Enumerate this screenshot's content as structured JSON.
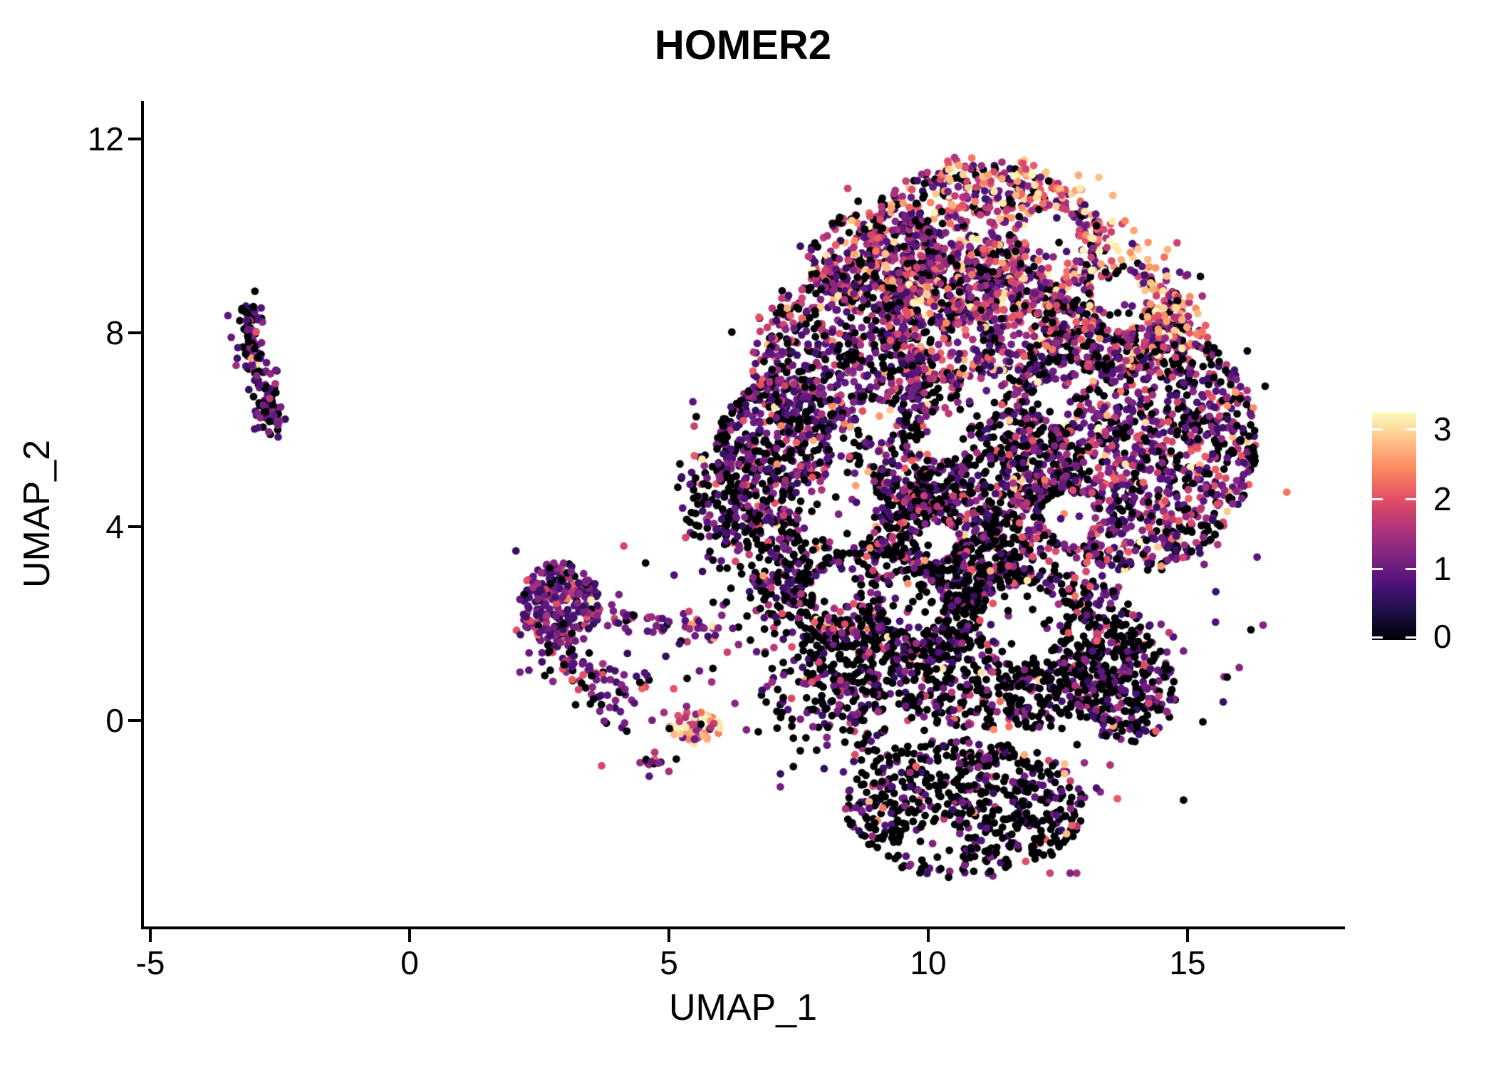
{
  "title": "HOMER2",
  "x_axis": {
    "label": "UMAP_1",
    "ticks": [
      "-5",
      "0",
      "5",
      "10",
      "15"
    ]
  },
  "y_axis": {
    "label": "UMAP_2",
    "ticks": [
      "12",
      "8",
      "4",
      "0"
    ]
  },
  "colorbar": {
    "ticks": [
      "3",
      "2",
      "1",
      "0"
    ],
    "gradient": [
      "#000004",
      "#1d1147",
      "#51127c",
      "#822681",
      "#b63679",
      "#e65164",
      "#fb8861",
      "#fec287",
      "#fcfdbf"
    ]
  },
  "chart_data": {
    "type": "scatter",
    "title": "HOMER2",
    "xlabel": "UMAP_1",
    "ylabel": "UMAP_2",
    "xlim": [
      -5.15,
      17.95
    ],
    "ylim": [
      -4.25,
      12.8
    ],
    "x_ticks": [
      -5,
      0,
      5,
      10,
      15
    ],
    "y_ticks": [
      0,
      4,
      8,
      12
    ],
    "grid": false,
    "background": "#ffffff",
    "legend": {
      "type": "colorbar",
      "position": "right",
      "ticks": [
        0,
        1,
        2,
        3
      ]
    },
    "color_scale": {
      "name": "magma",
      "domain": [
        0,
        3.3
      ],
      "colors": [
        "#000004",
        "#1d1147",
        "#51127c",
        "#822681",
        "#b63679",
        "#e65164",
        "#fb8861",
        "#fec287",
        "#fcfdbf"
      ]
    },
    "point_radius_px": 5.4,
    "seed": 987123,
    "expr_levels": {
      "zero": 0,
      "low": [
        0.55,
        1.3
      ],
      "mid": [
        1.3,
        2.2
      ],
      "high": [
        2.2,
        3.3
      ]
    },
    "blob_clip": {
      "cx": 11.1,
      "cy": 4.2,
      "rx": 5.95,
      "ry": 8.0,
      "ymin": -3.45,
      "ymax": 11.62
    },
    "clusters": [
      {
        "name": "blob-halo",
        "type": "gauss",
        "cx": 11.0,
        "cy": 4.6,
        "sx": 2.6,
        "sy": 3.1,
        "n": 460,
        "mix": {
          "zero": 0.45,
          "low": 0.35,
          "mid": 0.16,
          "high": 0.04
        },
        "clip": true
      },
      {
        "name": "blob-bottom-lobe",
        "type": "disk",
        "cx": 10.7,
        "cy": -1.8,
        "rx": 2.3,
        "ry": 1.45,
        "n": 560,
        "mix": {
          "zero": 0.7,
          "low": 0.24,
          "mid": 0.05,
          "high": 0.01
        },
        "clip": true
      },
      {
        "name": "blob-lower-mass",
        "type": "disk",
        "cx": 11.5,
        "cy": 1.5,
        "rx": 2.9,
        "ry": 1.7,
        "n": 800,
        "mix": {
          "zero": 0.66,
          "low": 0.25,
          "mid": 0.08,
          "high": 0.01
        },
        "clip": true
      },
      {
        "name": "blob-bottom-right",
        "type": "disk",
        "cx": 13.8,
        "cy": 0.7,
        "rx": 1.0,
        "ry": 1.2,
        "n": 230,
        "mix": {
          "zero": 0.58,
          "low": 0.33,
          "mid": 0.08,
          "high": 0.01
        },
        "clip": true
      },
      {
        "name": "blob-lowerleft-rim",
        "type": "band",
        "path": [
          [
            5.6,
            5.3
          ],
          [
            6.2,
            4.3
          ],
          [
            6.9,
            3.2
          ],
          [
            7.6,
            2.0
          ],
          [
            8.3,
            0.8
          ],
          [
            8.9,
            -0.3
          ]
        ],
        "w": 0.5,
        "n": 520,
        "mix": {
          "zero": 0.58,
          "low": 0.3,
          "mid": 0.11,
          "high": 0.01
        },
        "clip": true
      },
      {
        "name": "blob-mid-band",
        "type": "disk",
        "cx": 9.4,
        "cy": 3.1,
        "rx": 2.3,
        "ry": 1.9,
        "n": 650,
        "mix": {
          "zero": 0.62,
          "low": 0.27,
          "mid": 0.1,
          "high": 0.01
        },
        "clip": true
      },
      {
        "name": "blob-center",
        "type": "disk",
        "cx": 10.7,
        "cy": 5.0,
        "rx": 2.3,
        "ry": 2.2,
        "n": 720,
        "mix": {
          "zero": 0.54,
          "low": 0.3,
          "mid": 0.14,
          "high": 0.02
        },
        "clip": true
      },
      {
        "name": "blob-right-mass",
        "type": "disk",
        "cx": 13.9,
        "cy": 5.8,
        "rx": 2.45,
        "ry": 2.7,
        "n": 1150,
        "mix": {
          "zero": 0.34,
          "low": 0.38,
          "mid": 0.23,
          "high": 0.05
        },
        "clip": true
      },
      {
        "name": "blob-left-edge",
        "type": "disk",
        "cx": 7.0,
        "cy": 5.5,
        "rx": 1.1,
        "ry": 1.5,
        "n": 400,
        "mix": {
          "zero": 0.47,
          "low": 0.4,
          "mid": 0.12,
          "high": 0.01
        },
        "clip": true
      },
      {
        "name": "blob-upper-left",
        "type": "disk",
        "cx": 8.3,
        "cy": 7.6,
        "rx": 1.75,
        "ry": 1.65,
        "n": 560,
        "mix": {
          "zero": 0.3,
          "low": 0.41,
          "mid": 0.24,
          "high": 0.05
        },
        "clip": true
      },
      {
        "name": "blob-upper-left-2",
        "type": "disk",
        "cx": 9.0,
        "cy": 9.5,
        "rx": 1.35,
        "ry": 1.05,
        "n": 280,
        "mix": {
          "zero": 0.24,
          "low": 0.34,
          "mid": 0.29,
          "high": 0.13
        },
        "clip": true
      },
      {
        "name": "blob-upper-mid",
        "type": "disk",
        "cx": 10.9,
        "cy": 8.3,
        "rx": 1.8,
        "ry": 1.5,
        "n": 520,
        "mix": {
          "zero": 0.26,
          "low": 0.33,
          "mid": 0.3,
          "high": 0.11
        },
        "clip": true
      },
      {
        "name": "blob-top",
        "type": "disk",
        "cx": 11.0,
        "cy": 9.9,
        "rx": 2.3,
        "ry": 1.6,
        "n": 600,
        "mix": {
          "zero": 0.22,
          "low": 0.3,
          "mid": 0.32,
          "high": 0.16
        },
        "clip": true
      },
      {
        "name": "blob-upper-right",
        "type": "disk",
        "cx": 13.6,
        "cy": 8.3,
        "rx": 1.4,
        "ry": 1.1,
        "n": 260,
        "mix": {
          "zero": 0.22,
          "low": 0.3,
          "mid": 0.31,
          "high": 0.17
        },
        "clip": true
      },
      {
        "name": "blob-top-rim",
        "type": "band",
        "path": [
          [
            10.4,
            11.3
          ],
          [
            11.6,
            11.35
          ],
          [
            12.7,
            10.6
          ],
          [
            13.7,
            9.7
          ],
          [
            14.5,
            8.7
          ],
          [
            15.0,
            7.8
          ]
        ],
        "w": 0.32,
        "n": 170,
        "mix": {
          "zero": 0.03,
          "low": 0.07,
          "mid": 0.32,
          "high": 0.58
        },
        "clip": true
      },
      {
        "name": "blob-neck-left",
        "type": "gauss",
        "cx": 7.3,
        "cy": 0.2,
        "sx": 0.4,
        "sy": 0.55,
        "n": 20,
        "mix": {
          "zero": 0.7,
          "low": 0.25,
          "mid": 0.05,
          "high": 0.0
        },
        "clip": false
      },
      {
        "name": "left-strand-upper",
        "type": "band",
        "path": [
          [
            -3.0,
            8.55
          ],
          [
            -3.15,
            8.05
          ],
          [
            -3.0,
            7.5
          ],
          [
            -2.75,
            6.95
          ]
        ],
        "w": 0.15,
        "n": 95,
        "mix": {
          "zero": 0.34,
          "low": 0.54,
          "mid": 0.1,
          "high": 0.02
        },
        "clip": false
      },
      {
        "name": "left-strand-lower",
        "type": "gauss",
        "cx": -2.75,
        "cy": 6.4,
        "sx": 0.14,
        "sy": 0.22,
        "n": 55,
        "mix": {
          "zero": 0.5,
          "low": 0.44,
          "mid": 0.06,
          "high": 0.0
        },
        "clip": false
      },
      {
        "name": "mid-cluster-core",
        "type": "disk",
        "cx": 2.9,
        "cy": 2.4,
        "rx": 0.78,
        "ry": 0.88,
        "n": 250,
        "mix": {
          "zero": 0.16,
          "low": 0.61,
          "mid": 0.2,
          "high": 0.03
        },
        "clip": false
      },
      {
        "name": "mid-cluster-wing",
        "type": "band",
        "path": [
          [
            2.5,
            1.55
          ],
          [
            3.1,
            1.1
          ],
          [
            3.7,
            0.75
          ],
          [
            4.2,
            0.4
          ]
        ],
        "w": 0.28,
        "n": 85,
        "mix": {
          "zero": 0.3,
          "low": 0.54,
          "mid": 0.15,
          "high": 0.01
        },
        "clip": false
      },
      {
        "name": "mid-cluster-chain",
        "type": "band",
        "path": [
          [
            3.9,
            2.15
          ],
          [
            4.7,
            2.0
          ],
          [
            5.5,
            1.9
          ],
          [
            6.1,
            1.8
          ]
        ],
        "w": 0.14,
        "n": 48,
        "mix": {
          "zero": 0.15,
          "low": 0.5,
          "mid": 0.3,
          "high": 0.05
        },
        "clip": false
      },
      {
        "name": "mid-cluster-sparse",
        "type": "gauss",
        "cx": 4.5,
        "cy": 0.6,
        "sx": 0.75,
        "sy": 0.8,
        "n": 34,
        "mix": {
          "zero": 0.45,
          "low": 0.45,
          "mid": 0.1,
          "high": 0.0
        },
        "clip": false
      },
      {
        "name": "mid-bright",
        "type": "disk",
        "cx": 5.5,
        "cy": -0.15,
        "rx": 0.5,
        "ry": 0.33,
        "n": 48,
        "mix": {
          "zero": 0.04,
          "low": 0.14,
          "mid": 0.34,
          "high": 0.48
        },
        "clip": false
      },
      {
        "name": "mid-small-magenta",
        "type": "gauss",
        "cx": 4.65,
        "cy": -0.9,
        "sx": 0.12,
        "sy": 0.1,
        "n": 13,
        "mix": {
          "zero": 0.2,
          "low": 0.3,
          "mid": 0.45,
          "high": 0.05
        },
        "clip": false
      }
    ],
    "holes": [
      {
        "x": 8.3,
        "y": 4.3,
        "r": 0.75
      },
      {
        "x": 9.7,
        "y": 2.4,
        "r": 0.6
      },
      {
        "x": 11.8,
        "y": 2.0,
        "r": 0.8
      },
      {
        "x": 10.3,
        "y": 5.9,
        "r": 0.5
      },
      {
        "x": 13.7,
        "y": 8.6,
        "r": 0.55
      },
      {
        "x": 12.4,
        "y": 10.1,
        "r": 0.5
      },
      {
        "x": 11.0,
        "y": 6.7,
        "r": 0.45
      },
      {
        "x": 9.0,
        "y": 6.2,
        "r": 0.4
      },
      {
        "x": 12.7,
        "y": 4.2,
        "r": 0.5
      },
      {
        "x": 10.15,
        "y": 3.7,
        "r": 0.4
      },
      {
        "x": 14.1,
        "y": 2.6,
        "r": 0.45
      },
      {
        "x": 8.2,
        "y": 2.7,
        "r": 0.45
      },
      {
        "x": 10.2,
        "y": -2.6,
        "r": 0.45
      },
      {
        "x": 12.4,
        "y": 6.6,
        "r": 0.4
      }
    ],
    "extra_points": [
      {
        "x": 4.13,
        "y": 3.6,
        "v": 1.9
      },
      {
        "x": 2.05,
        "y": 3.5,
        "v": 0.6
      },
      {
        "x": 4.55,
        "y": 3.25,
        "v": 0
      },
      {
        "x": 5.1,
        "y": 3.0,
        "v": 0.8
      },
      {
        "x": 15.0,
        "y": 9.2,
        "v": 1.1
      },
      {
        "x": 14.85,
        "y": 9.25,
        "v": 0.9
      },
      {
        "x": 7.4,
        "y": -0.95,
        "v": 0
      },
      {
        "x": 7.15,
        "y": -1.1,
        "v": 0.6
      },
      {
        "x": 5.0,
        "y": -1.05,
        "v": 1.5
      },
      {
        "x": 4.62,
        "y": -1.15,
        "v": 0.9
      },
      {
        "x": 6.3,
        "y": 4.0,
        "v": 0
      },
      {
        "x": 6.1,
        "y": 3.7,
        "v": 0.8
      }
    ]
  }
}
